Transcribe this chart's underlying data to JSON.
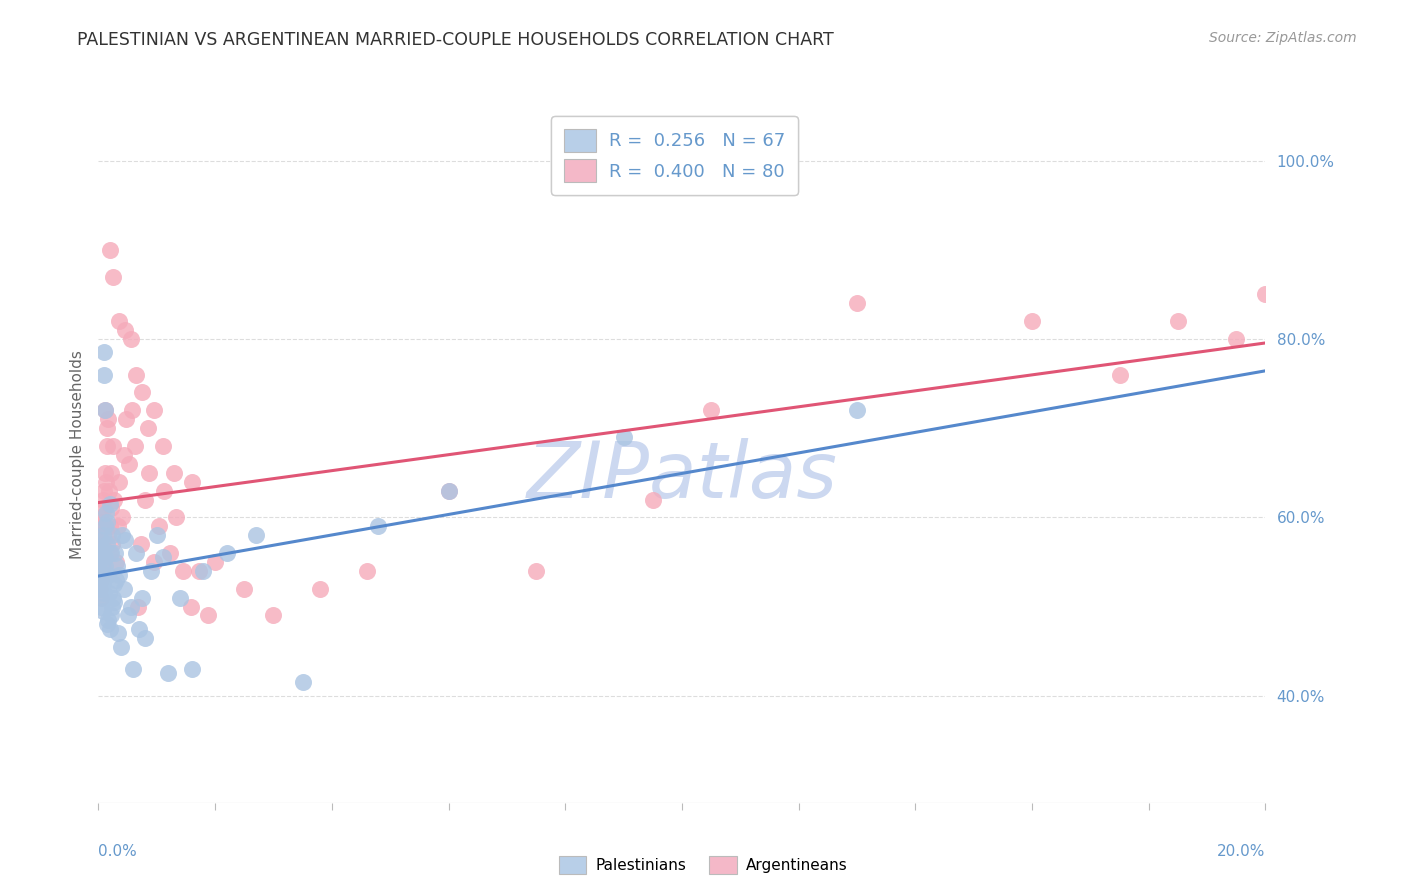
{
  "title": "PALESTINIAN VS ARGENTINEAN MARRIED-COUPLE HOUSEHOLDS CORRELATION CHART",
  "source": "Source: ZipAtlas.com",
  "ylabel": "Married-couple Households",
  "ytick_labels": [
    "40.0%",
    "60.0%",
    "80.0%",
    "100.0%"
  ],
  "ytick_values": [
    0.4,
    0.6,
    0.8,
    1.0
  ],
  "xmin": 0.0,
  "xmax": 0.2,
  "ymin": 0.28,
  "ymax": 1.06,
  "pal_color": "#aac4e2",
  "arg_color": "#f5aaba",
  "pal_line_color": "#5588cc",
  "arg_line_color": "#e05575",
  "watermark": "ZIPatlas",
  "watermark_color": "#ccd8f0",
  "legend_label_pal": "R =  0.256   N = 67",
  "legend_label_arg": "R =  0.400   N = 80",
  "legend_pal_color": "#b8cfe8",
  "legend_arg_color": "#f4b8c8",
  "bg_color": "#ffffff",
  "grid_color": "#dddddd",
  "title_color": "#333333",
  "axis_color": "#6699cc",
  "palestinians_x": [
    0.0002,
    0.0003,
    0.0003,
    0.0004,
    0.0004,
    0.0005,
    0.0005,
    0.0006,
    0.0006,
    0.0007,
    0.0007,
    0.0008,
    0.0008,
    0.0009,
    0.0009,
    0.001,
    0.001,
    0.0011,
    0.0011,
    0.0012,
    0.0012,
    0.0013,
    0.0014,
    0.0015,
    0.0015,
    0.0016,
    0.0017,
    0.0018,
    0.0019,
    0.002,
    0.0021,
    0.0022,
    0.0023,
    0.0024,
    0.0025,
    0.0026,
    0.0027,
    0.0028,
    0.003,
    0.0032,
    0.0034,
    0.0036,
    0.0038,
    0.004,
    0.0043,
    0.0046,
    0.005,
    0.0055,
    0.006,
    0.0065,
    0.007,
    0.0075,
    0.008,
    0.009,
    0.01,
    0.011,
    0.012,
    0.014,
    0.016,
    0.018,
    0.022,
    0.027,
    0.035,
    0.048,
    0.06,
    0.09,
    0.13
  ],
  "palestinians_y": [
    0.54,
    0.56,
    0.52,
    0.575,
    0.5,
    0.53,
    0.555,
    0.51,
    0.545,
    0.565,
    0.495,
    0.58,
    0.525,
    0.535,
    0.515,
    0.785,
    0.76,
    0.72,
    0.545,
    0.555,
    0.59,
    0.605,
    0.48,
    0.57,
    0.595,
    0.535,
    0.485,
    0.515,
    0.475,
    0.615,
    0.49,
    0.56,
    0.5,
    0.58,
    0.51,
    0.525,
    0.505,
    0.56,
    0.53,
    0.545,
    0.47,
    0.535,
    0.455,
    0.58,
    0.52,
    0.575,
    0.49,
    0.5,
    0.43,
    0.56,
    0.475,
    0.51,
    0.465,
    0.54,
    0.58,
    0.555,
    0.425,
    0.51,
    0.43,
    0.54,
    0.56,
    0.58,
    0.415,
    0.59,
    0.63,
    0.69,
    0.72
  ],
  "argentineans_x": [
    0.0002,
    0.0003,
    0.0003,
    0.0004,
    0.0004,
    0.0005,
    0.0005,
    0.0006,
    0.0006,
    0.0007,
    0.0007,
    0.0008,
    0.0008,
    0.0009,
    0.0009,
    0.001,
    0.0011,
    0.0012,
    0.0013,
    0.0014,
    0.0015,
    0.0016,
    0.0017,
    0.0018,
    0.0019,
    0.002,
    0.0021,
    0.0022,
    0.0023,
    0.0025,
    0.0027,
    0.003,
    0.0033,
    0.0036,
    0.004,
    0.0044,
    0.0048,
    0.0053,
    0.0058,
    0.0063,
    0.0068,
    0.0073,
    0.008,
    0.0087,
    0.0095,
    0.0103,
    0.0112,
    0.0122,
    0.0133,
    0.0145,
    0.0158,
    0.0172,
    0.0187,
    0.002,
    0.0025,
    0.0035,
    0.0045,
    0.0055,
    0.0065,
    0.0075,
    0.0085,
    0.0095,
    0.011,
    0.013,
    0.016,
    0.02,
    0.025,
    0.03,
    0.038,
    0.046,
    0.06,
    0.075,
    0.095,
    0.105,
    0.13,
    0.16,
    0.175,
    0.185,
    0.195,
    0.2
  ],
  "argentineans_y": [
    0.545,
    0.52,
    0.58,
    0.51,
    0.6,
    0.56,
    0.53,
    0.595,
    0.57,
    0.545,
    0.62,
    0.56,
    0.59,
    0.63,
    0.565,
    0.61,
    0.72,
    0.65,
    0.64,
    0.68,
    0.7,
    0.71,
    0.58,
    0.63,
    0.59,
    0.56,
    0.61,
    0.65,
    0.57,
    0.68,
    0.62,
    0.55,
    0.59,
    0.64,
    0.6,
    0.67,
    0.71,
    0.66,
    0.72,
    0.68,
    0.5,
    0.57,
    0.62,
    0.65,
    0.55,
    0.59,
    0.63,
    0.56,
    0.6,
    0.54,
    0.5,
    0.54,
    0.49,
    0.9,
    0.87,
    0.82,
    0.81,
    0.8,
    0.76,
    0.74,
    0.7,
    0.72,
    0.68,
    0.65,
    0.64,
    0.55,
    0.52,
    0.49,
    0.52,
    0.54,
    0.63,
    0.54,
    0.62,
    0.72,
    0.84,
    0.82,
    0.76,
    0.82,
    0.8,
    0.85
  ]
}
